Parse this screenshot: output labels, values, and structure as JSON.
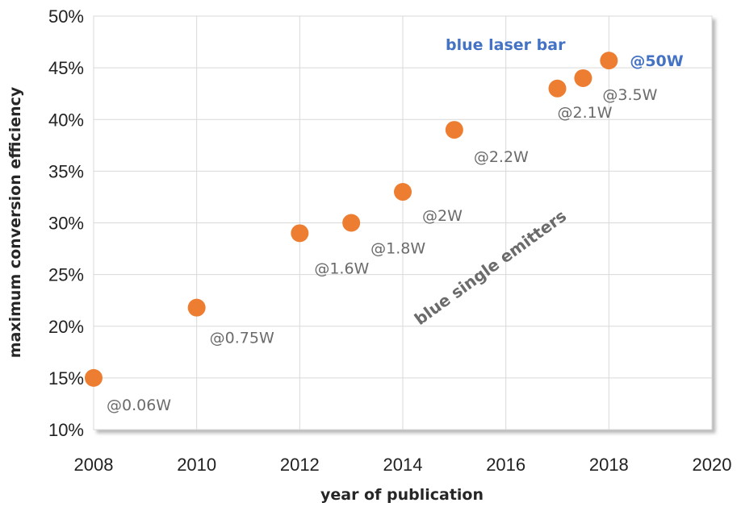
{
  "chart_data": {
    "type": "scatter",
    "xlabel": "year of publication",
    "ylabel": "maximum conversion efficiency",
    "xlim": [
      2008,
      2020
    ],
    "ylim": [
      10,
      50
    ],
    "x_ticks": [
      "2008",
      "2010",
      "2012",
      "2014",
      "2016",
      "2018",
      "2020"
    ],
    "y_ticks": [
      "10%",
      "15%",
      "20%",
      "25%",
      "30%",
      "35%",
      "40%",
      "45%",
      "50%"
    ],
    "grid": true,
    "marker_color": "#ed7d31",
    "series": [
      {
        "points": [
          {
            "x": 2008,
            "y": 15.0,
            "label": "@0.06W"
          },
          {
            "x": 2010,
            "y": 21.8,
            "label": "@0.75W"
          },
          {
            "x": 2012,
            "y": 29.0,
            "label": "@1.6W"
          },
          {
            "x": 2013,
            "y": 30.0,
            "label": "@1.8W"
          },
          {
            "x": 2014,
            "y": 33.0,
            "label": "@2W"
          },
          {
            "x": 2015,
            "y": 39.0,
            "label": "@2.2W"
          },
          {
            "x": 2017,
            "y": 43.0,
            "label": "@2.1W"
          },
          {
            "x": 2017.5,
            "y": 44.0,
            "label": "@3.5W"
          },
          {
            "x": 2018,
            "y": 45.7,
            "label": "@50W"
          }
        ]
      }
    ],
    "annotations": {
      "laser_bar": "blue laser bar",
      "single_emitters": "blue single emitters"
    }
  }
}
